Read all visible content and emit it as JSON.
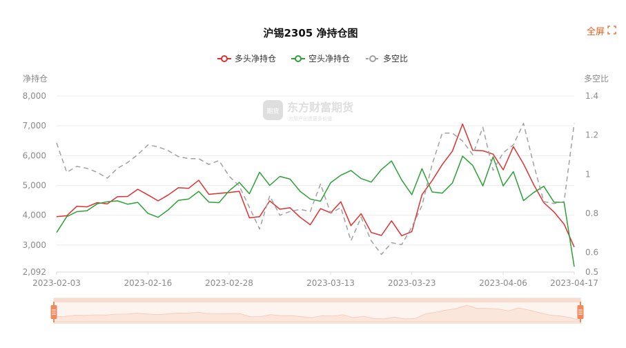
{
  "fullscreen_label": "全屏",
  "watermark": {
    "logo_text": "期货",
    "name": "东方财富期货",
    "slogan": "为用户创造更多价值"
  },
  "chart_data": {
    "type": "line",
    "title": "沪锡2305 净持仓图",
    "y_left_label": "净持仓",
    "y_right_label": "多空比",
    "y_left_range": [
      2092,
      8000
    ],
    "y_left_ticks": [
      "8,000",
      "7,000",
      "6,000",
      "5,000",
      "4,000",
      "3,000",
      "2,092"
    ],
    "y_right_range": [
      0.5,
      1.4
    ],
    "y_right_ticks": [
      "1.4",
      "1.2",
      "1",
      "0.8",
      "0.6",
      "0.5"
    ],
    "x_ticks": [
      {
        "index": 0,
        "label": "2023-02-03"
      },
      {
        "index": 9,
        "label": "2023-02-16"
      },
      {
        "index": 17,
        "label": "2023-02-28"
      },
      {
        "index": 27,
        "label": "2023-03-13"
      },
      {
        "index": 35,
        "label": "2023-03-23"
      },
      {
        "index": 44,
        "label": "2023-04-06"
      },
      {
        "index": 51,
        "label": "2023-04-17"
      }
    ],
    "grid": true,
    "legend_position": "top",
    "series": [
      {
        "name": "多头净持仓",
        "axis": "left",
        "color": "#e02f2f",
        "dash": false,
        "values": [
          3950,
          3980,
          4300,
          4280,
          4420,
          4380,
          4620,
          4630,
          4870,
          4680,
          4480,
          4680,
          4920,
          4900,
          5170,
          4700,
          4730,
          4760,
          4800,
          3910,
          3950,
          4480,
          4200,
          4250,
          3930,
          3680,
          4220,
          4080,
          4450,
          3650,
          4050,
          3420,
          3320,
          3810,
          3310,
          3450,
          4690,
          5160,
          5700,
          6150,
          7060,
          6180,
          6160,
          6050,
          5520,
          6300,
          5720,
          5030,
          4420,
          4110,
          3700,
          2930
        ]
      },
      {
        "name": "空头净持仓",
        "axis": "left",
        "color": "#2aa035",
        "dash": false,
        "values": [
          3420,
          3950,
          4120,
          4150,
          4380,
          4450,
          4480,
          4370,
          4430,
          4060,
          3930,
          4180,
          4500,
          4540,
          4800,
          4440,
          4420,
          4820,
          5100,
          4720,
          5440,
          5000,
          5300,
          5210,
          4800,
          4540,
          4470,
          5090,
          5340,
          5500,
          5230,
          5110,
          5530,
          5820,
          5180,
          4690,
          5560,
          4780,
          4740,
          5080,
          5980,
          5670,
          4980,
          5960,
          4980,
          5460,
          4490,
          4760,
          4970,
          4440,
          4430,
          2270
        ]
      },
      {
        "name": "多空比",
        "axis": "right",
        "color": "#a0a0a0",
        "dash": true,
        "values": [
          1.16,
          1.01,
          1.04,
          1.03,
          1.01,
          0.98,
          1.03,
          1.06,
          1.1,
          1.15,
          1.14,
          1.12,
          1.09,
          1.08,
          1.08,
          1.05,
          1.07,
          0.99,
          0.94,
          0.83,
          0.72,
          0.89,
          0.79,
          0.81,
          0.82,
          0.81,
          0.95,
          0.8,
          0.83,
          0.66,
          0.78,
          0.66,
          0.59,
          0.65,
          0.64,
          0.73,
          0.84,
          1.05,
          1.21,
          1.21,
          1.17,
          1.1,
          1.24,
          1.02,
          1.11,
          1.15,
          1.26,
          1.05,
          0.86,
          0.85,
          0.86,
          1.26
        ]
      }
    ]
  }
}
